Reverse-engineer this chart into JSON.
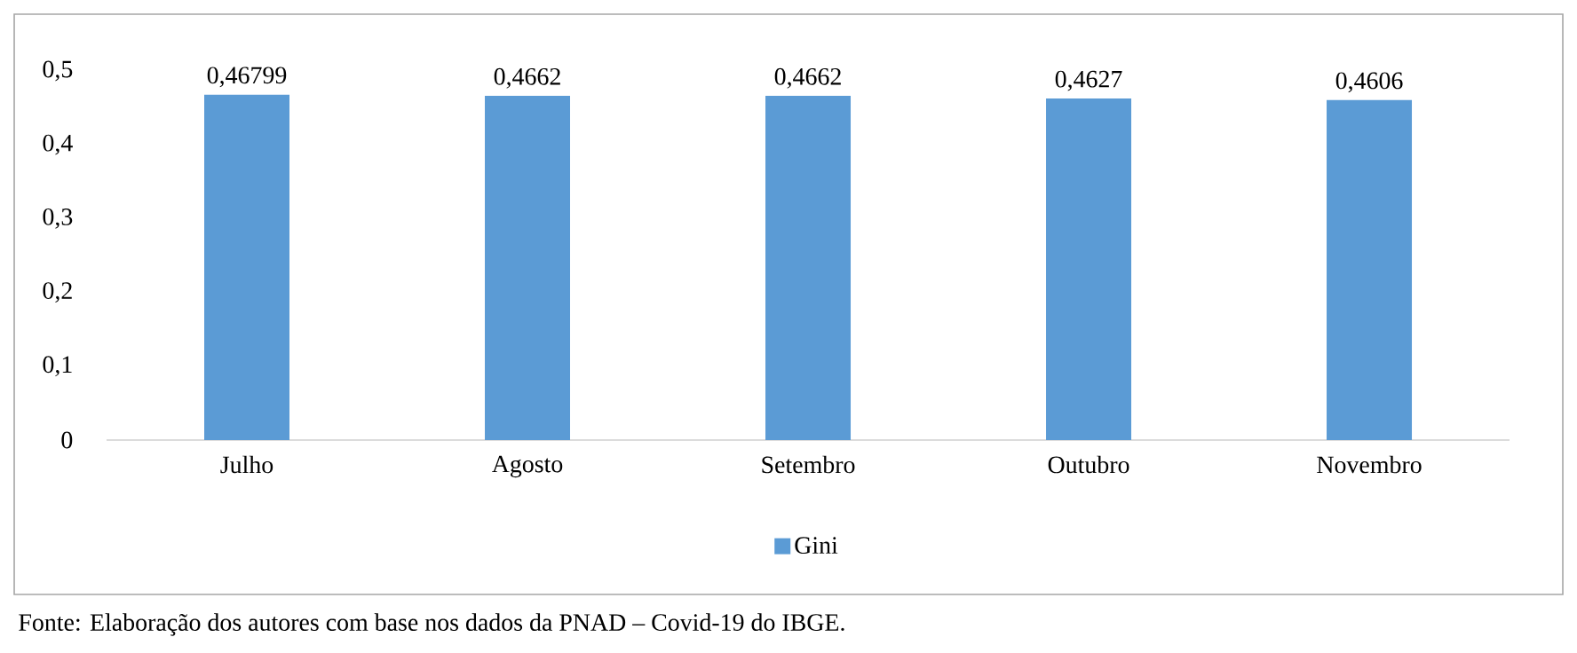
{
  "chart_data": {
    "type": "bar",
    "categories": [
      "Julho",
      "Agosto",
      "Setembro",
      "Outubro",
      "Novembro"
    ],
    "series": [
      {
        "name": "Gini",
        "color": "#5b9bd5",
        "values": [
          0.46799,
          0.4662,
          0.4662,
          0.4627,
          0.4606
        ],
        "value_labels": [
          "0,46799",
          "0,4662",
          "0,4662",
          "0,4627",
          "0,4606"
        ]
      }
    ],
    "ylim": [
      0,
      0.5
    ],
    "yticks": [
      0,
      {
        "value": 0.1,
        "label": "0,1"
      },
      {
        "value": 0.2,
        "label": "0,2"
      },
      {
        "value": 0.3,
        "label": "0,3"
      },
      {
        "value": 0.4,
        "label": "0,4"
      },
      {
        "value": 0.5,
        "label": "0,5"
      }
    ],
    "grid": false,
    "legend": "bottom",
    "annotations": [
      "Fonte: Elaboração dos autores com base nos dados da PNAD – Covid-19 do IBGE."
    ]
  }
}
